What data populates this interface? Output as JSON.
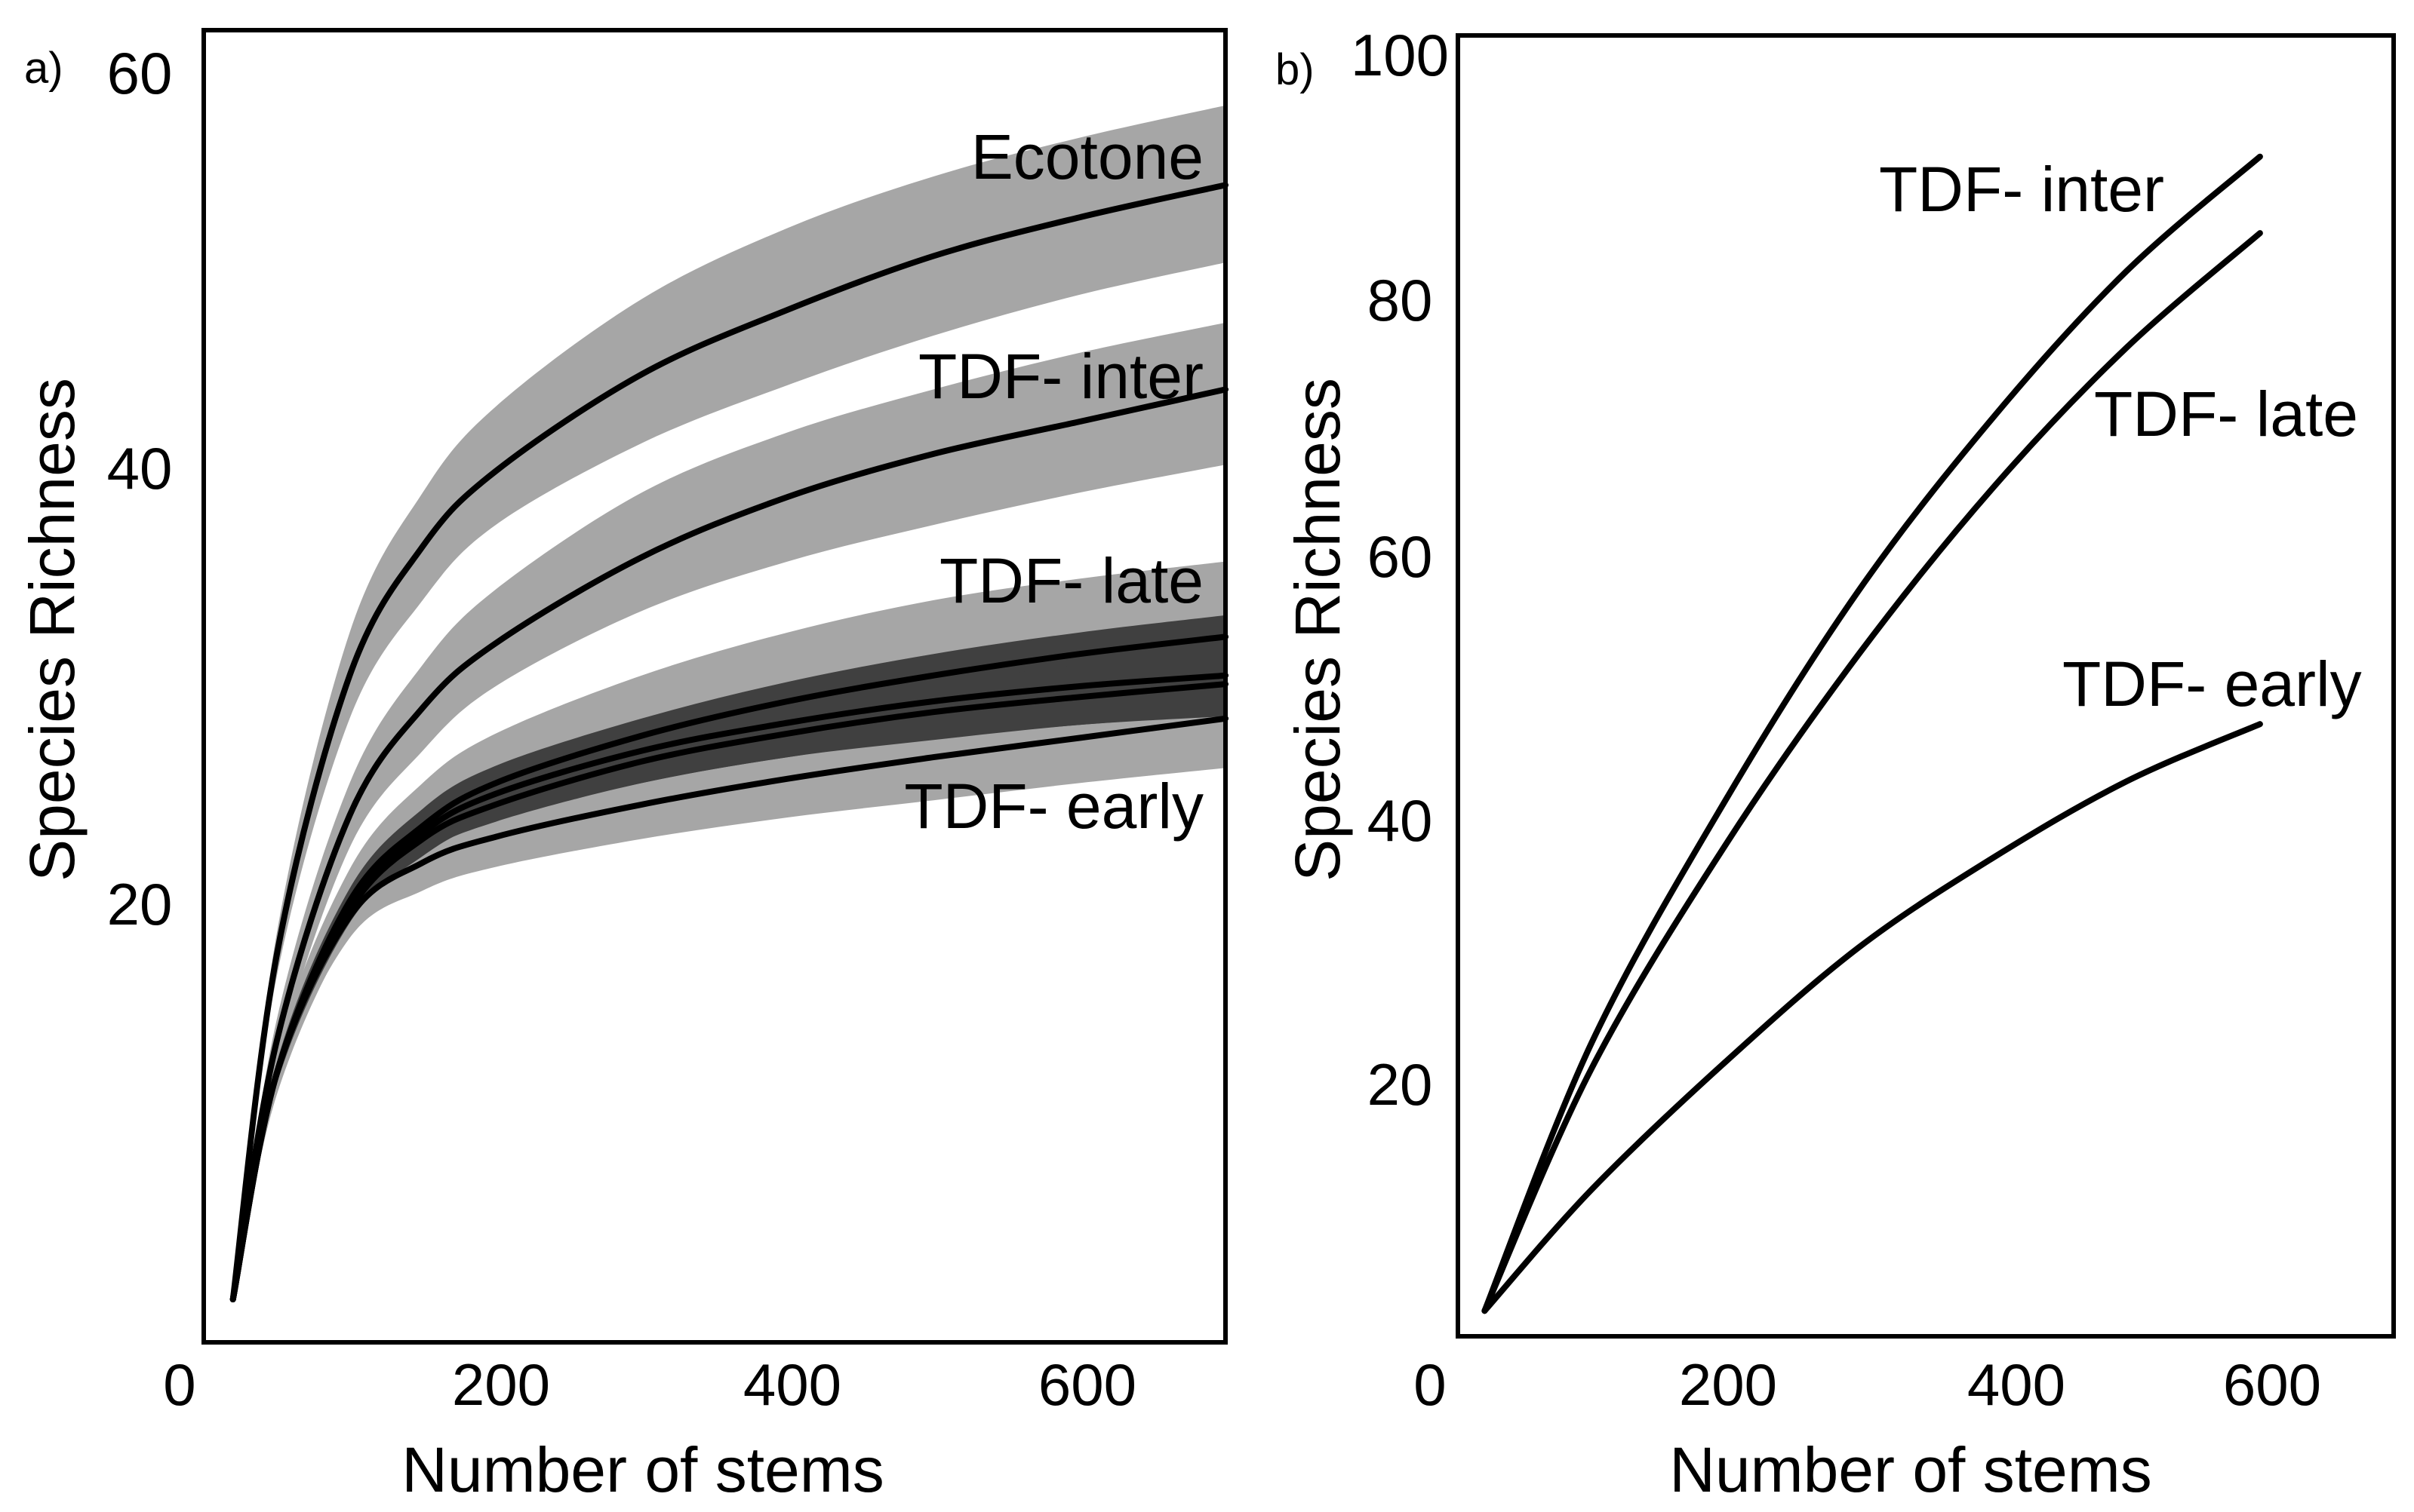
{
  "chart_data": [
    {
      "panel_label": "a)",
      "type": "line",
      "xlabel": "Number of stems",
      "ylabel": "Species Richness",
      "xlim": [
        0,
        700
      ],
      "ylim": [
        0,
        61
      ],
      "xticks": [
        0,
        200,
        400,
        600
      ],
      "yticks": [
        20,
        40,
        60
      ],
      "grid": false,
      "band_colors": {
        "light": "#a6a6a6",
        "dark": "#404040"
      },
      "x": [
        20,
        50,
        100,
        150,
        200,
        300,
        400,
        500,
        600,
        700
      ],
      "series": [
        {
          "name": "Ecotone",
          "label": "Ecotone",
          "values": [
            2,
            18,
            31,
            37,
            40.5,
            45,
            48,
            50.5,
            52.3,
            53.8
          ],
          "ci_lower": [
            2,
            17,
            29,
            34.5,
            38,
            41.8,
            44.5,
            46.8,
            48.7,
            50.2
          ],
          "ci_upper": [
            2,
            19,
            33,
            39.5,
            43.5,
            48.5,
            51.8,
            54.2,
            56,
            57.5
          ],
          "band": "light"
        },
        {
          "name": "TDF- inter",
          "label": "TDF- inter",
          "values": [
            2,
            14,
            24.5,
            29.5,
            32.5,
            36.5,
            39.3,
            41.3,
            42.8,
            44.3
          ],
          "ci_lower": [
            2,
            13,
            23,
            27.5,
            30.5,
            34,
            36.3,
            38,
            39.5,
            40.8
          ],
          "ci_upper": [
            2,
            15,
            26,
            31.5,
            35,
            39.5,
            42.3,
            44.3,
            46,
            47.4
          ],
          "band": "light"
        },
        {
          "name": "TDF- late",
          "label": "TDF- late",
          "values": [
            2,
            12.5,
            20.5,
            24,
            26,
            28.2,
            29.8,
            31,
            32,
            32.8
          ],
          "ci_lower": [
            2,
            11.5,
            19,
            22,
            23.8,
            25.6,
            26.8,
            27.7,
            28.4,
            29
          ],
          "ci_upper": [
            2,
            13.5,
            22,
            26,
            28.3,
            31,
            33,
            34.5,
            35.5,
            36.3
          ],
          "band": "light"
        },
        {
          "name": "TDF- late (2)",
          "label": "",
          "values": [
            2,
            12.5,
            20.3,
            23.7,
            25.5,
            27.5,
            28.8,
            29.8,
            30.5,
            31
          ],
          "ci_lower": [
            2,
            12,
            19.5,
            22.6,
            24.3,
            26,
            27.2,
            28,
            28.7,
            29.1
          ],
          "ci_upper": [
            2,
            13,
            21.1,
            24.8,
            26.8,
            29,
            30.7,
            32,
            33,
            33.8
          ],
          "band": "dark"
        },
        {
          "name": "TDF- late (3)",
          "label": "",
          "values": [
            2,
            12.5,
            20.1,
            23.4,
            25,
            27,
            28.3,
            29.3,
            30,
            30.6
          ],
          "ci_lower": [
            2,
            12.1,
            19.6,
            22.7,
            24.2,
            26,
            27.2,
            28.1,
            28.7,
            29.2
          ],
          "ci_upper": [
            2,
            12.9,
            20.6,
            24.1,
            25.8,
            28.1,
            29.5,
            30.6,
            31.5,
            32.2
          ],
          "band": "dark"
        },
        {
          "name": "TDF- early",
          "label": "TDF- early",
          "values": [
            2,
            12.5,
            19.8,
            22.3,
            23.5,
            25,
            26.2,
            27.2,
            28.1,
            29
          ],
          "ci_lower": [
            2,
            11.8,
            18.8,
            21,
            22.1,
            23.4,
            24.4,
            25.2,
            26,
            26.7
          ],
          "ci_upper": [
            2,
            13.2,
            20.8,
            23.6,
            24.9,
            26.6,
            28,
            29.2,
            30.3,
            31.3
          ],
          "band": "light"
        }
      ]
    },
    {
      "panel_label": "b)",
      "type": "line",
      "xlabel": "Number of stems",
      "ylabel": "Species Richness",
      "xlim": [
        0,
        700
      ],
      "ylim": [
        0,
        102
      ],
      "xticks": [
        0,
        200,
        400,
        600
      ],
      "yticks": [
        20,
        40,
        60,
        80,
        100
      ],
      "grid": false,
      "x": [
        20,
        100,
        200,
        300,
        400,
        500,
        600
      ],
      "series": [
        {
          "name": "TDF- inter",
          "label": "TDF- inter",
          "values": [
            2,
            23,
            42,
            58.5,
            72,
            83.5,
            92.5
          ]
        },
        {
          "name": "TDF- late",
          "label": "TDF- late",
          "values": [
            2,
            21,
            38.5,
            53.5,
            66.5,
            77.5,
            86.5
          ]
        },
        {
          "name": "TDF- early",
          "label": "TDF- early",
          "values": [
            2,
            11.5,
            21.5,
            30.5,
            37.5,
            43.5,
            48
          ]
        }
      ]
    }
  ]
}
